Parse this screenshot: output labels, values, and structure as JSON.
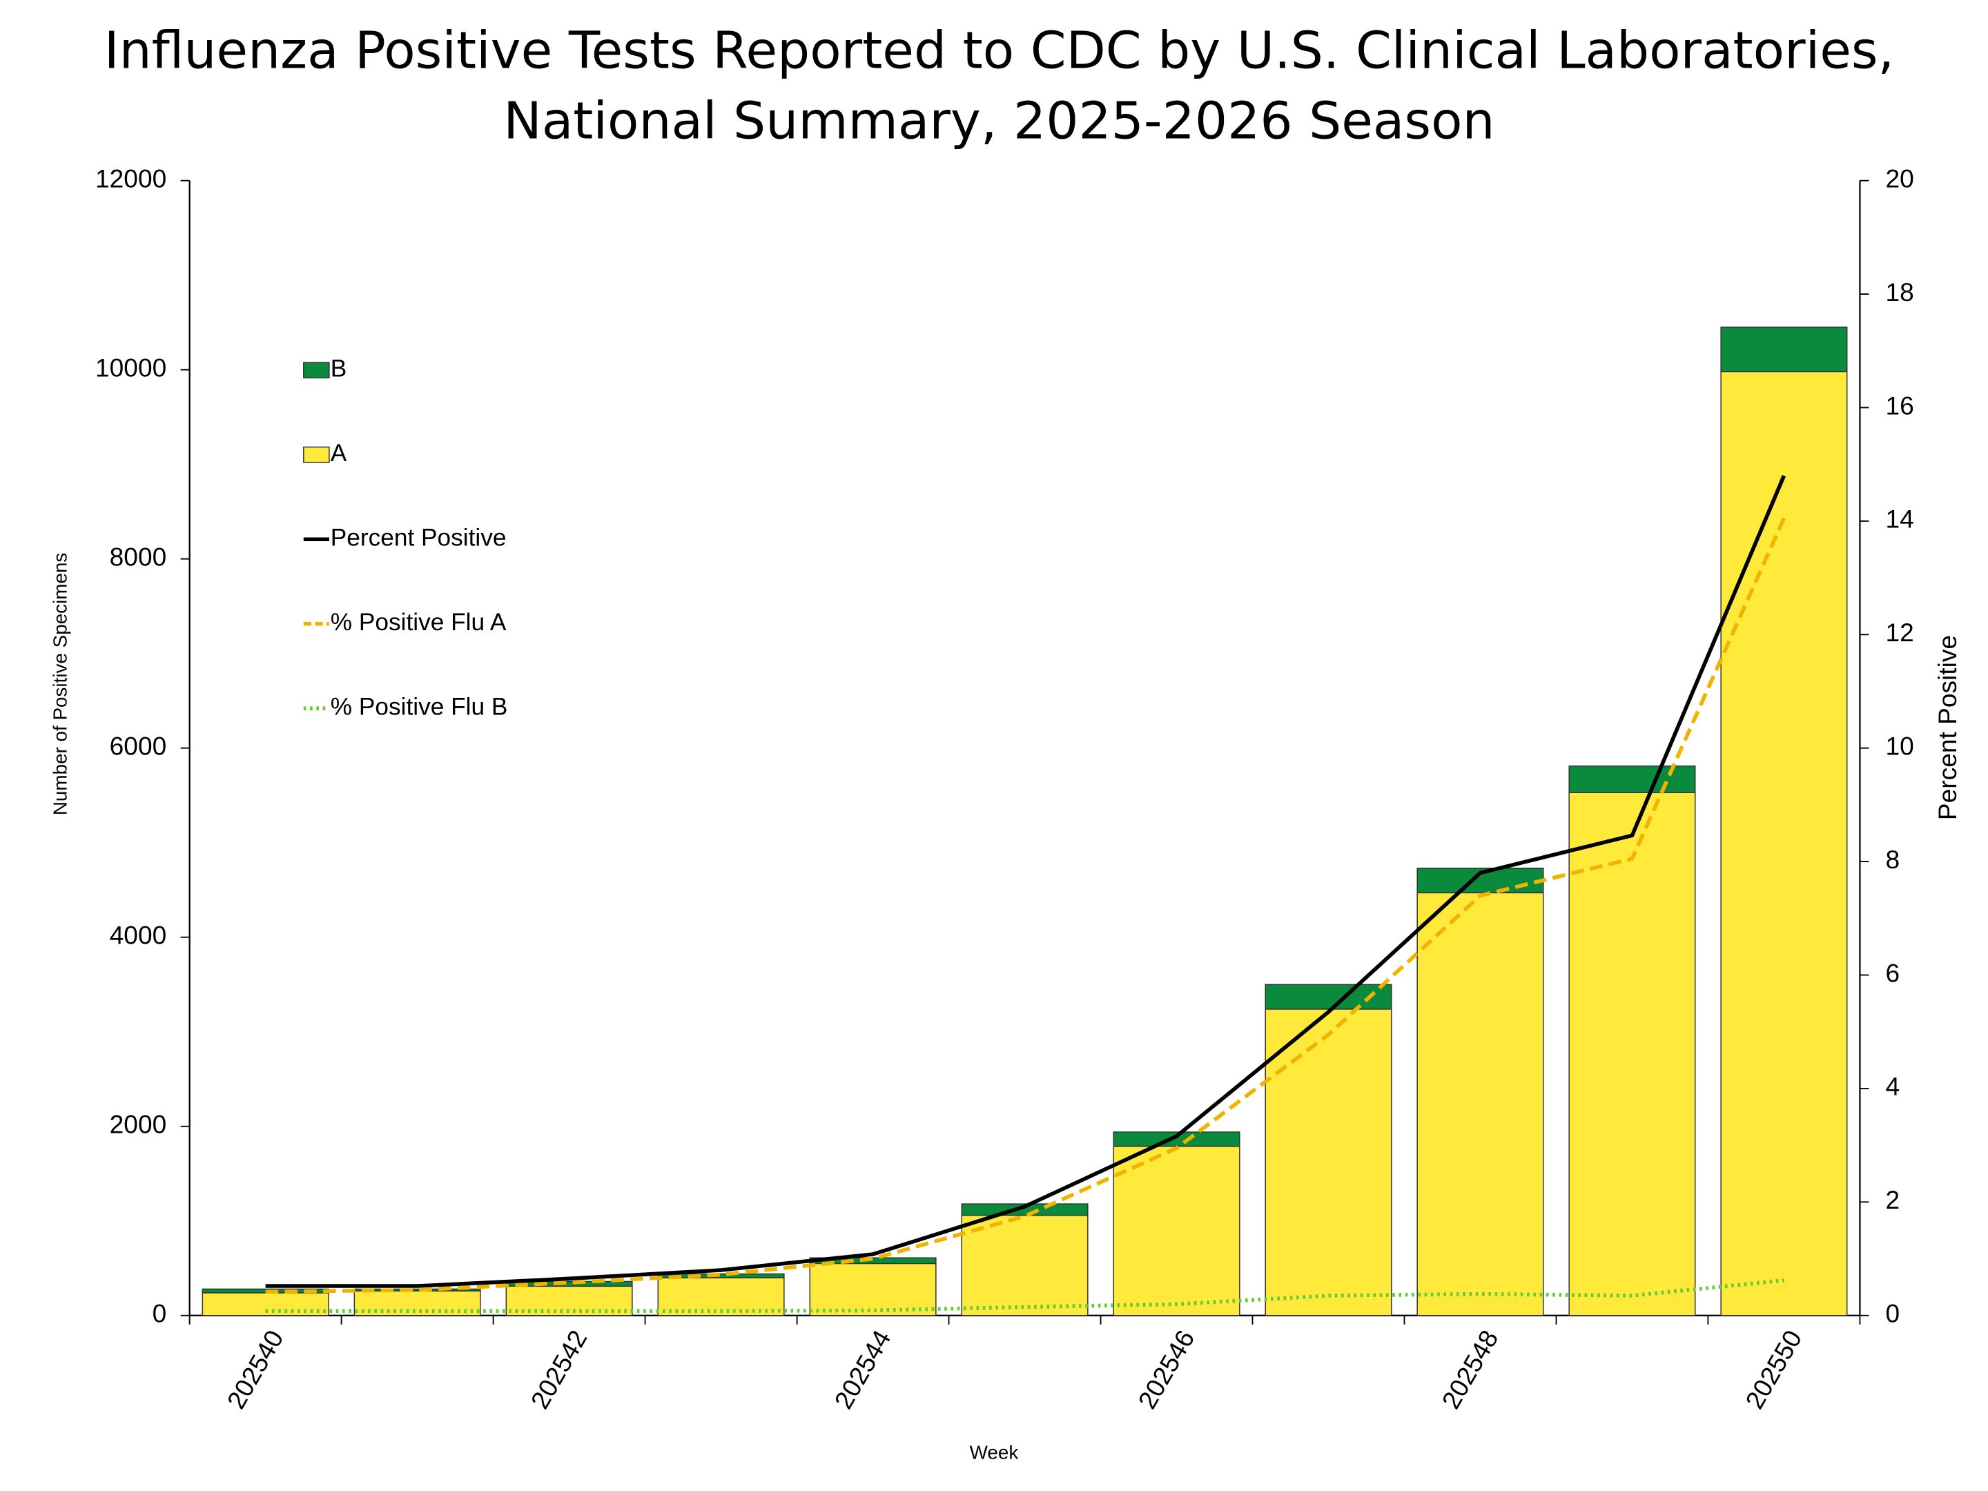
{
  "chart_data": {
    "type": "bar",
    "title": [
      "Influenza Positive Tests Reported to CDC by U.S. Clinical Laboratories,",
      "National Summary, 2025-2026 Season"
    ],
    "x_label": "Week",
    "y_label": "Number of Positive Specimens",
    "y2_label": "Percent Positive",
    "categories": [
      "202540",
      null,
      "202542",
      null,
      "202544",
      null,
      "202546",
      null,
      "202548",
      null,
      "202550"
    ],
    "ylim": [
      0,
      12000
    ],
    "yticks": [
      0,
      2000,
      4000,
      6000,
      8000,
      10000,
      12000
    ],
    "y2lim": [
      0,
      20
    ],
    "y2ticks": [
      0,
      2,
      4,
      6,
      8,
      10,
      12,
      14,
      16,
      18,
      20
    ],
    "series": [
      {
        "name": "B",
        "type": "bar",
        "color": "#0a8a3c",
        "values": [
          40,
          20,
          50,
          40,
          60,
          120,
          150,
          260,
          260,
          280,
          470
        ]
      },
      {
        "name": "A",
        "type": "bar",
        "color": "#ffe93b",
        "values": [
          240,
          260,
          310,
          400,
          550,
          1060,
          1790,
          3240,
          4470,
          5530,
          9980
        ]
      },
      {
        "name": "Percent Positive",
        "type": "line",
        "style": "solid",
        "axis": "y2",
        "color": "#000000",
        "values": [
          0.52,
          0.52,
          0.65,
          0.8,
          1.08,
          1.92,
          3.16,
          5.35,
          7.8,
          8.46,
          14.8
        ]
      },
      {
        "name": "% Positive Flu A",
        "type": "line",
        "style": "dashed",
        "axis": "y2",
        "color": "#f0b400",
        "values": [
          0.42,
          0.45,
          0.58,
          0.72,
          1.0,
          1.75,
          2.95,
          4.95,
          7.4,
          8.05,
          14.05
        ]
      },
      {
        "name": "% Positive Flu B",
        "type": "line",
        "style": "dotted",
        "axis": "y2",
        "color": "#66cc33",
        "values": [
          0.08,
          0.08,
          0.08,
          0.08,
          0.09,
          0.15,
          0.2,
          0.35,
          0.38,
          0.35,
          0.62
        ]
      }
    ]
  }
}
